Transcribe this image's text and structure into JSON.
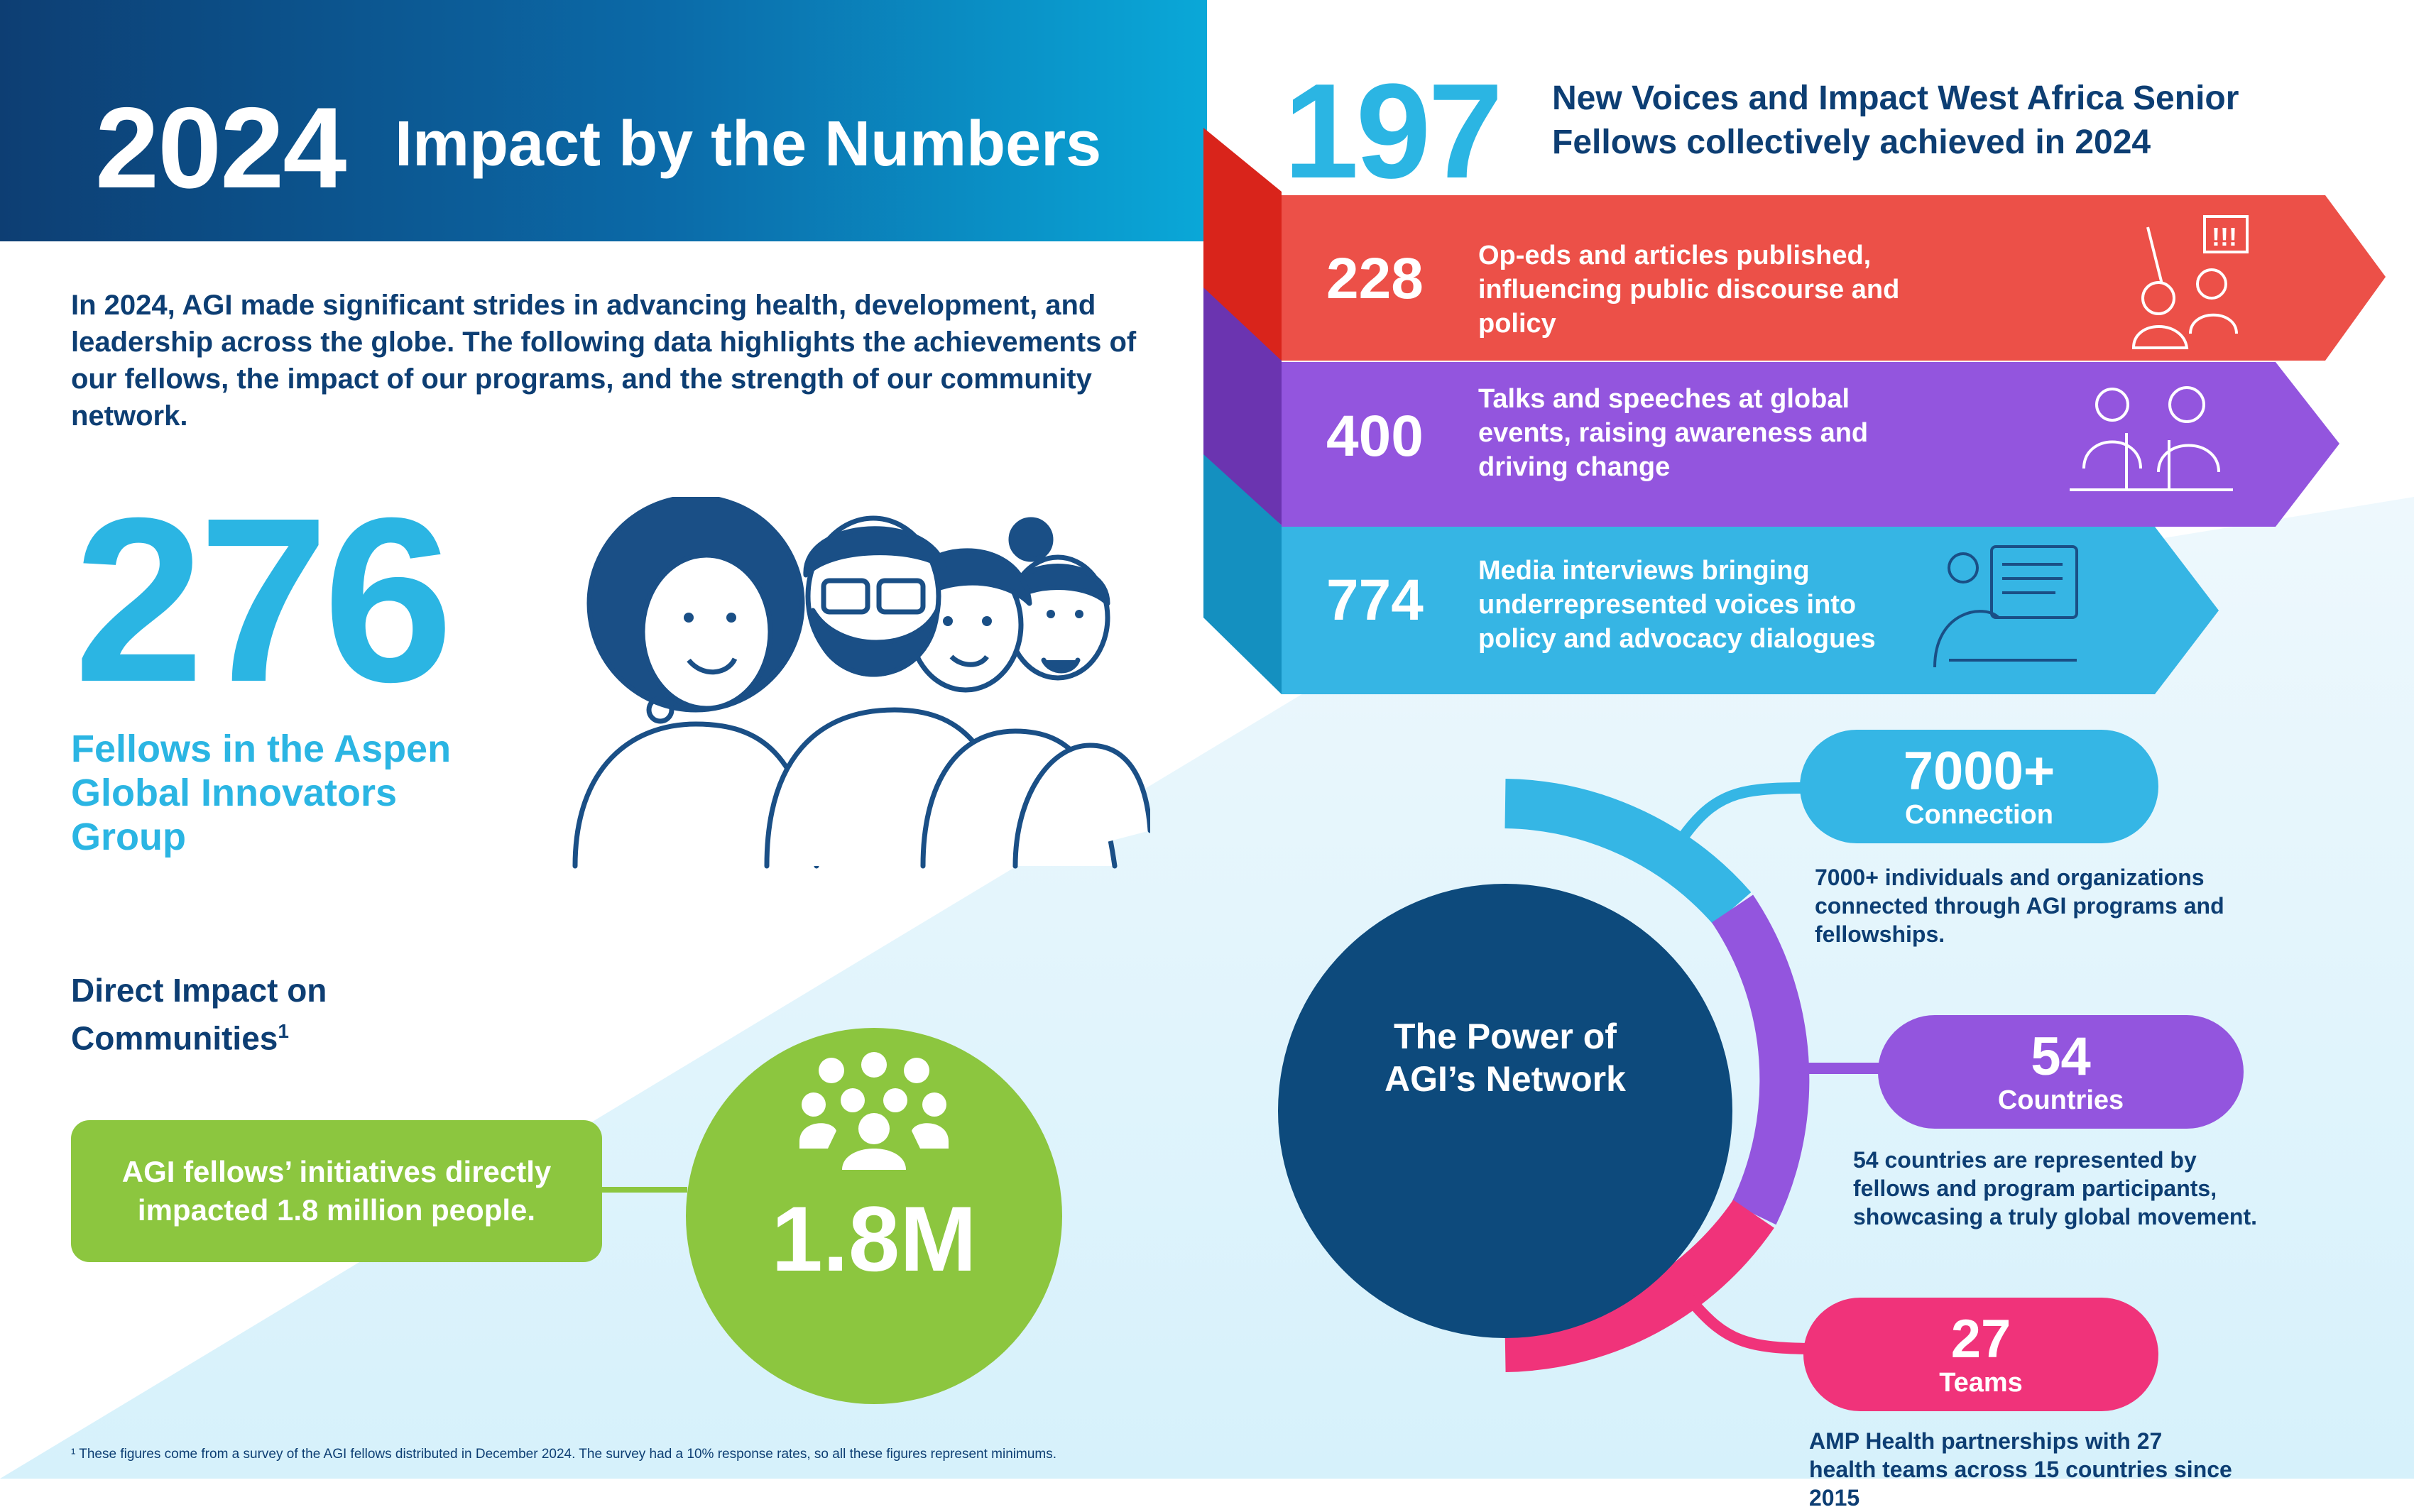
{
  "header": {
    "year": "2024",
    "title": "Impact by the Numbers"
  },
  "intro": "In 2024, AGI made significant strides in advancing health, development, and leadership across the globe. The following data highlights the achievements of our fellows, the impact of our programs, and the strength of our community network.",
  "fellows": {
    "number": "276",
    "label": "Fellows in the Aspen Global Innovators Group"
  },
  "direct_impact": {
    "title": "Direct Impact on Communities",
    "footnote_marker": "1",
    "box_text": "AGI fellows’ initiatives directly impacted 1.8 million people.",
    "value": "1.8M"
  },
  "footnote": "¹ These figures come from a survey of the AGI fellows distributed in December 2024. The survey had a 10% response rates, so all these figures represent minimums.",
  "senior_fellows": {
    "number": "197",
    "text": "New Voices and Impact West Africa Senior Fellows collectively achieved in 2024",
    "stats": [
      {
        "value": "228",
        "text": "Op-eds and articles published, influencing public discourse and policy",
        "color": "#ec5048"
      },
      {
        "value": "400",
        "text": "Talks and speeches at global events, raising awareness and driving change",
        "color": "#9355de"
      },
      {
        "value": "774",
        "text": "Media interviews bringing underrepresented voices into policy and advocacy dialogues",
        "color": "#36b5e4"
      }
    ]
  },
  "network": {
    "title_line1": "The Power of",
    "title_line2": "AGI’s Network",
    "items": [
      {
        "value": "7000+",
        "label": "Connection",
        "color": "#35b6e5",
        "description": "7000+ individuals and organizations connected through AGI programs and fellowships."
      },
      {
        "value": "54",
        "label": "Countries",
        "color": "#9355de",
        "description": "54 countries are represented by fellows and program participants, showcasing a truly global movement."
      },
      {
        "value": "27",
        "label": "Teams",
        "color": "#f0337a",
        "description": "AMP Health partnerships with 27 health teams across 15 countries since 2015"
      }
    ]
  },
  "colors": {
    "navy": "#0d3e73",
    "sky": "#2bb5e3",
    "green": "#8cc63f",
    "red": "#ec5048",
    "purple": "#9355de",
    "pink": "#f0337a"
  }
}
